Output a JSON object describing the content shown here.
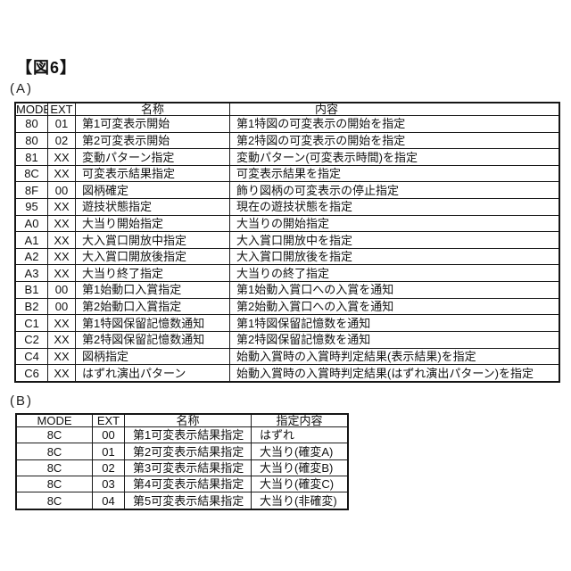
{
  "figure_label": "【図6】",
  "colors": {
    "background": "#ffffff",
    "text": "#111111",
    "table_border": "#1a1a1a"
  },
  "section_a": {
    "label": "(A)",
    "table": {
      "headers": [
        "MODE",
        "EXT",
        "名称",
        "内容"
      ],
      "rows": [
        [
          "80",
          "01",
          "第1可変表示開始",
          "第1特図の可変表示の開始を指定"
        ],
        [
          "80",
          "02",
          "第2可変表示開始",
          "第2特図の可変表示の開始を指定"
        ],
        [
          "81",
          "XX",
          "変動パターン指定",
          "変動パターン(可変表示時間)を指定"
        ],
        [
          "8C",
          "XX",
          "可変表示結果指定",
          "可変表示結果を指定"
        ],
        [
          "8F",
          "00",
          "図柄確定",
          "飾り図柄の可変表示の停止指定"
        ],
        [
          "95",
          "XX",
          "遊技状態指定",
          "現在の遊技状態を指定"
        ],
        [
          "A0",
          "XX",
          "大当り開始指定",
          "大当りの開始指定"
        ],
        [
          "A1",
          "XX",
          "大入賞口開放中指定",
          "大入賞口開放中を指定"
        ],
        [
          "A2",
          "XX",
          "大入賞口開放後指定",
          "大入賞口開放後を指定"
        ],
        [
          "A3",
          "XX",
          "大当り終了指定",
          "大当りの終了指定"
        ],
        [
          "B1",
          "00",
          "第1始動口入賞指定",
          "第1始動入賞口への入賞を通知"
        ],
        [
          "B2",
          "00",
          "第2始動口入賞指定",
          "第2始動入賞口への入賞を通知"
        ],
        [
          "C1",
          "XX",
          "第1特図保留記憶数通知",
          "第1特図保留記憶数を通知"
        ],
        [
          "C2",
          "XX",
          "第2特図保留記憶数通知",
          "第2特図保留記憶数を通知"
        ],
        [
          "C4",
          "XX",
          "図柄指定",
          "始動入賞時の入賞時判定結果(表示結果)を指定"
        ],
        [
          "C6",
          "XX",
          "はずれ演出パターン",
          "始動入賞時の入賞時判定結果(はずれ演出パターン)を指定"
        ]
      ]
    }
  },
  "section_b": {
    "label": "(B)",
    "table": {
      "headers": [
        "MODE",
        "EXT",
        "名称",
        "指定内容"
      ],
      "rows": [
        [
          "8C",
          "00",
          "第1可変表示結果指定",
          "はずれ"
        ],
        [
          "8C",
          "01",
          "第2可変表示結果指定",
          "大当り(確変A)"
        ],
        [
          "8C",
          "02",
          "第3可変表示結果指定",
          "大当り(確変B)"
        ],
        [
          "8C",
          "03",
          "第4可変表示結果指定",
          "大当り(確変C)"
        ],
        [
          "8C",
          "04",
          "第5可変表示結果指定",
          "大当り(非確変)"
        ]
      ]
    }
  }
}
